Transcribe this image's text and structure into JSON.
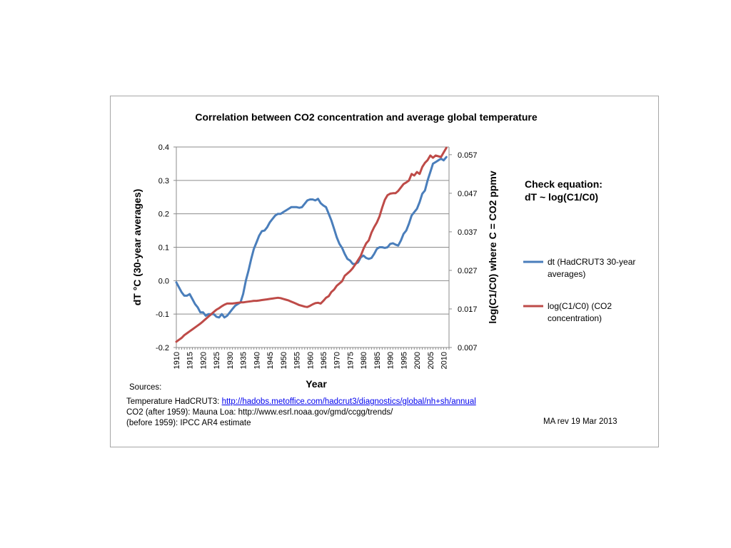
{
  "chart_data": {
    "type": "line",
    "title": "Correlation between CO2 concentration and average global temperature",
    "xlabel": "Year",
    "ylabel": "dT °C  (30-year averages)",
    "y2label": "log(C1/C0) where C = CO2 ppmv",
    "xlim": [
      1910,
      2012
    ],
    "ylim": [
      -0.2,
      0.4
    ],
    "y2lim": [
      0.007,
      0.059
    ],
    "x_ticks": [
      "1910",
      "1915",
      "1920",
      "1925",
      "1930",
      "1935",
      "1940",
      "1945",
      "1950",
      "1955",
      "1960",
      "1965",
      "1970",
      "1975",
      "1980",
      "1985",
      "1990",
      "1995",
      "2000",
      "2005",
      "2010"
    ],
    "y_ticks": [
      "0.4",
      "0.3",
      "0.2",
      "0.1",
      "0.0",
      "-0.1",
      "-0.2"
    ],
    "y2_ticks": [
      "0.057",
      "0.047",
      "0.037",
      "0.027",
      "0.017",
      "0.007"
    ],
    "grid": true,
    "series": [
      {
        "name": "dt (HadCRUT3 30-year averages)",
        "axis": "left",
        "color": "#4a7ebb",
        "x": [
          1910,
          1911,
          1912,
          1913,
          1914,
          1915,
          1916,
          1917,
          1918,
          1919,
          1920,
          1921,
          1922,
          1923,
          1924,
          1925,
          1926,
          1927,
          1928,
          1929,
          1930,
          1931,
          1932,
          1933,
          1934,
          1935,
          1936,
          1937,
          1938,
          1939,
          1940,
          1941,
          1942,
          1943,
          1944,
          1945,
          1946,
          1947,
          1948,
          1949,
          1950,
          1951,
          1952,
          1953,
          1954,
          1955,
          1956,
          1957,
          1958,
          1959,
          1960,
          1961,
          1962,
          1963,
          1964,
          1965,
          1966,
          1967,
          1968,
          1969,
          1970,
          1971,
          1972,
          1973,
          1974,
          1975,
          1976,
          1977,
          1978,
          1979,
          1980,
          1981,
          1982,
          1983,
          1984,
          1985,
          1986,
          1987,
          1988,
          1989,
          1990,
          1991,
          1992,
          1993,
          1994,
          1995,
          1996,
          1997,
          1998,
          1999,
          2000,
          2001,
          2002,
          2003,
          2004,
          2005,
          2006,
          2007,
          2008,
          2009,
          2010,
          2011
        ],
        "values": [
          -0.005,
          -0.02,
          -0.035,
          -0.045,
          -0.045,
          -0.04,
          -0.055,
          -0.07,
          -0.08,
          -0.095,
          -0.095,
          -0.105,
          -0.1,
          -0.1,
          -0.1,
          -0.108,
          -0.11,
          -0.1,
          -0.11,
          -0.105,
          -0.095,
          -0.085,
          -0.075,
          -0.07,
          -0.065,
          -0.04,
          0.0,
          0.03,
          0.065,
          0.095,
          0.115,
          0.135,
          0.148,
          0.15,
          0.16,
          0.175,
          0.185,
          0.195,
          0.2,
          0.2,
          0.205,
          0.21,
          0.215,
          0.22,
          0.22,
          0.22,
          0.218,
          0.22,
          0.23,
          0.24,
          0.243,
          0.243,
          0.24,
          0.245,
          0.232,
          0.225,
          0.22,
          0.2,
          0.18,
          0.155,
          0.13,
          0.11,
          0.098,
          0.08,
          0.065,
          0.06,
          0.05,
          0.05,
          0.055,
          0.07,
          0.075,
          0.068,
          0.065,
          0.068,
          0.08,
          0.095,
          0.1,
          0.1,
          0.098,
          0.1,
          0.11,
          0.112,
          0.108,
          0.105,
          0.12,
          0.14,
          0.15,
          0.17,
          0.195,
          0.205,
          0.215,
          0.235,
          0.26,
          0.27,
          0.3,
          0.325,
          0.35,
          0.355,
          0.36,
          0.365,
          0.36,
          0.37
        ]
      },
      {
        "name": "log(C1/C0) (CO2 concentration)",
        "axis": "right",
        "color": "#be4b48",
        "x": [
          1910,
          1911,
          1912,
          1913,
          1914,
          1915,
          1916,
          1917,
          1918,
          1919,
          1920,
          1921,
          1922,
          1923,
          1924,
          1925,
          1926,
          1927,
          1928,
          1929,
          1930,
          1931,
          1932,
          1933,
          1934,
          1935,
          1936,
          1937,
          1938,
          1939,
          1940,
          1941,
          1942,
          1943,
          1944,
          1945,
          1946,
          1947,
          1948,
          1949,
          1950,
          1951,
          1952,
          1953,
          1954,
          1955,
          1956,
          1957,
          1958,
          1959,
          1960,
          1961,
          1962,
          1963,
          1964,
          1965,
          1966,
          1967,
          1968,
          1969,
          1970,
          1971,
          1972,
          1973,
          1974,
          1975,
          1976,
          1977,
          1978,
          1979,
          1980,
          1981,
          1982,
          1983,
          1984,
          1985,
          1986,
          1987,
          1988,
          1989,
          1990,
          1991,
          1992,
          1993,
          1994,
          1995,
          1996,
          1997,
          1998,
          1999,
          2000,
          2001,
          2002,
          2003,
          2004,
          2005,
          2006,
          2007,
          2008,
          2009,
          2010,
          2011
        ],
        "values": [
          0.0085,
          0.009,
          0.0095,
          0.0102,
          0.0107,
          0.0112,
          0.0117,
          0.0122,
          0.0127,
          0.0132,
          0.0138,
          0.0144,
          0.015,
          0.0156,
          0.0162,
          0.0168,
          0.0172,
          0.0177,
          0.0181,
          0.0184,
          0.0184,
          0.0184,
          0.0185,
          0.0186,
          0.0187,
          0.0187,
          0.0188,
          0.0189,
          0.019,
          0.0191,
          0.0191,
          0.0192,
          0.0193,
          0.0194,
          0.0195,
          0.0196,
          0.0197,
          0.0198,
          0.0199,
          0.0198,
          0.0196,
          0.0194,
          0.0192,
          0.0189,
          0.0186,
          0.0183,
          0.018,
          0.0178,
          0.0176,
          0.0175,
          0.0178,
          0.0182,
          0.0185,
          0.0186,
          0.0184,
          0.0191,
          0.0199,
          0.0203,
          0.0214,
          0.022,
          0.023,
          0.0236,
          0.0242,
          0.0256,
          0.0262,
          0.0268,
          0.0276,
          0.0286,
          0.0297,
          0.0308,
          0.0326,
          0.034,
          0.0348,
          0.0368,
          0.0382,
          0.0394,
          0.041,
          0.0433,
          0.0453,
          0.0465,
          0.0469,
          0.047,
          0.047,
          0.0476,
          0.0485,
          0.0494,
          0.0498,
          0.0503,
          0.052,
          0.0516,
          0.0525,
          0.052,
          0.0538,
          0.0549,
          0.0556,
          0.0568,
          0.0562,
          0.0568,
          0.0566,
          0.0564,
          0.0576,
          0.0588
        ]
      }
    ]
  },
  "legend": {
    "items": [
      "dt (HadCRUT3 30-year averages)",
      "log(C1/C0) (CO2 concentration)"
    ]
  },
  "note": {
    "line1": "Check equation:",
    "line2": "dT ~ log(C1/C0)"
  },
  "sources": {
    "heading": "Sources:",
    "temperature_prefix": "Temperature HadCRUT3: ",
    "temperature_link": "http://hadobs.metoffice.com/hadcrut3/diagnostics/global/nh+sh/annual",
    "co2_after": "CO2 (after 1959): Mauna Loa: http://www.esrl.noaa.gov/gmd/ccgg/trends/",
    "co2_before": "(before 1959): IPCC AR4 estimate",
    "revision": "MA rev 19 Mar 2013"
  }
}
